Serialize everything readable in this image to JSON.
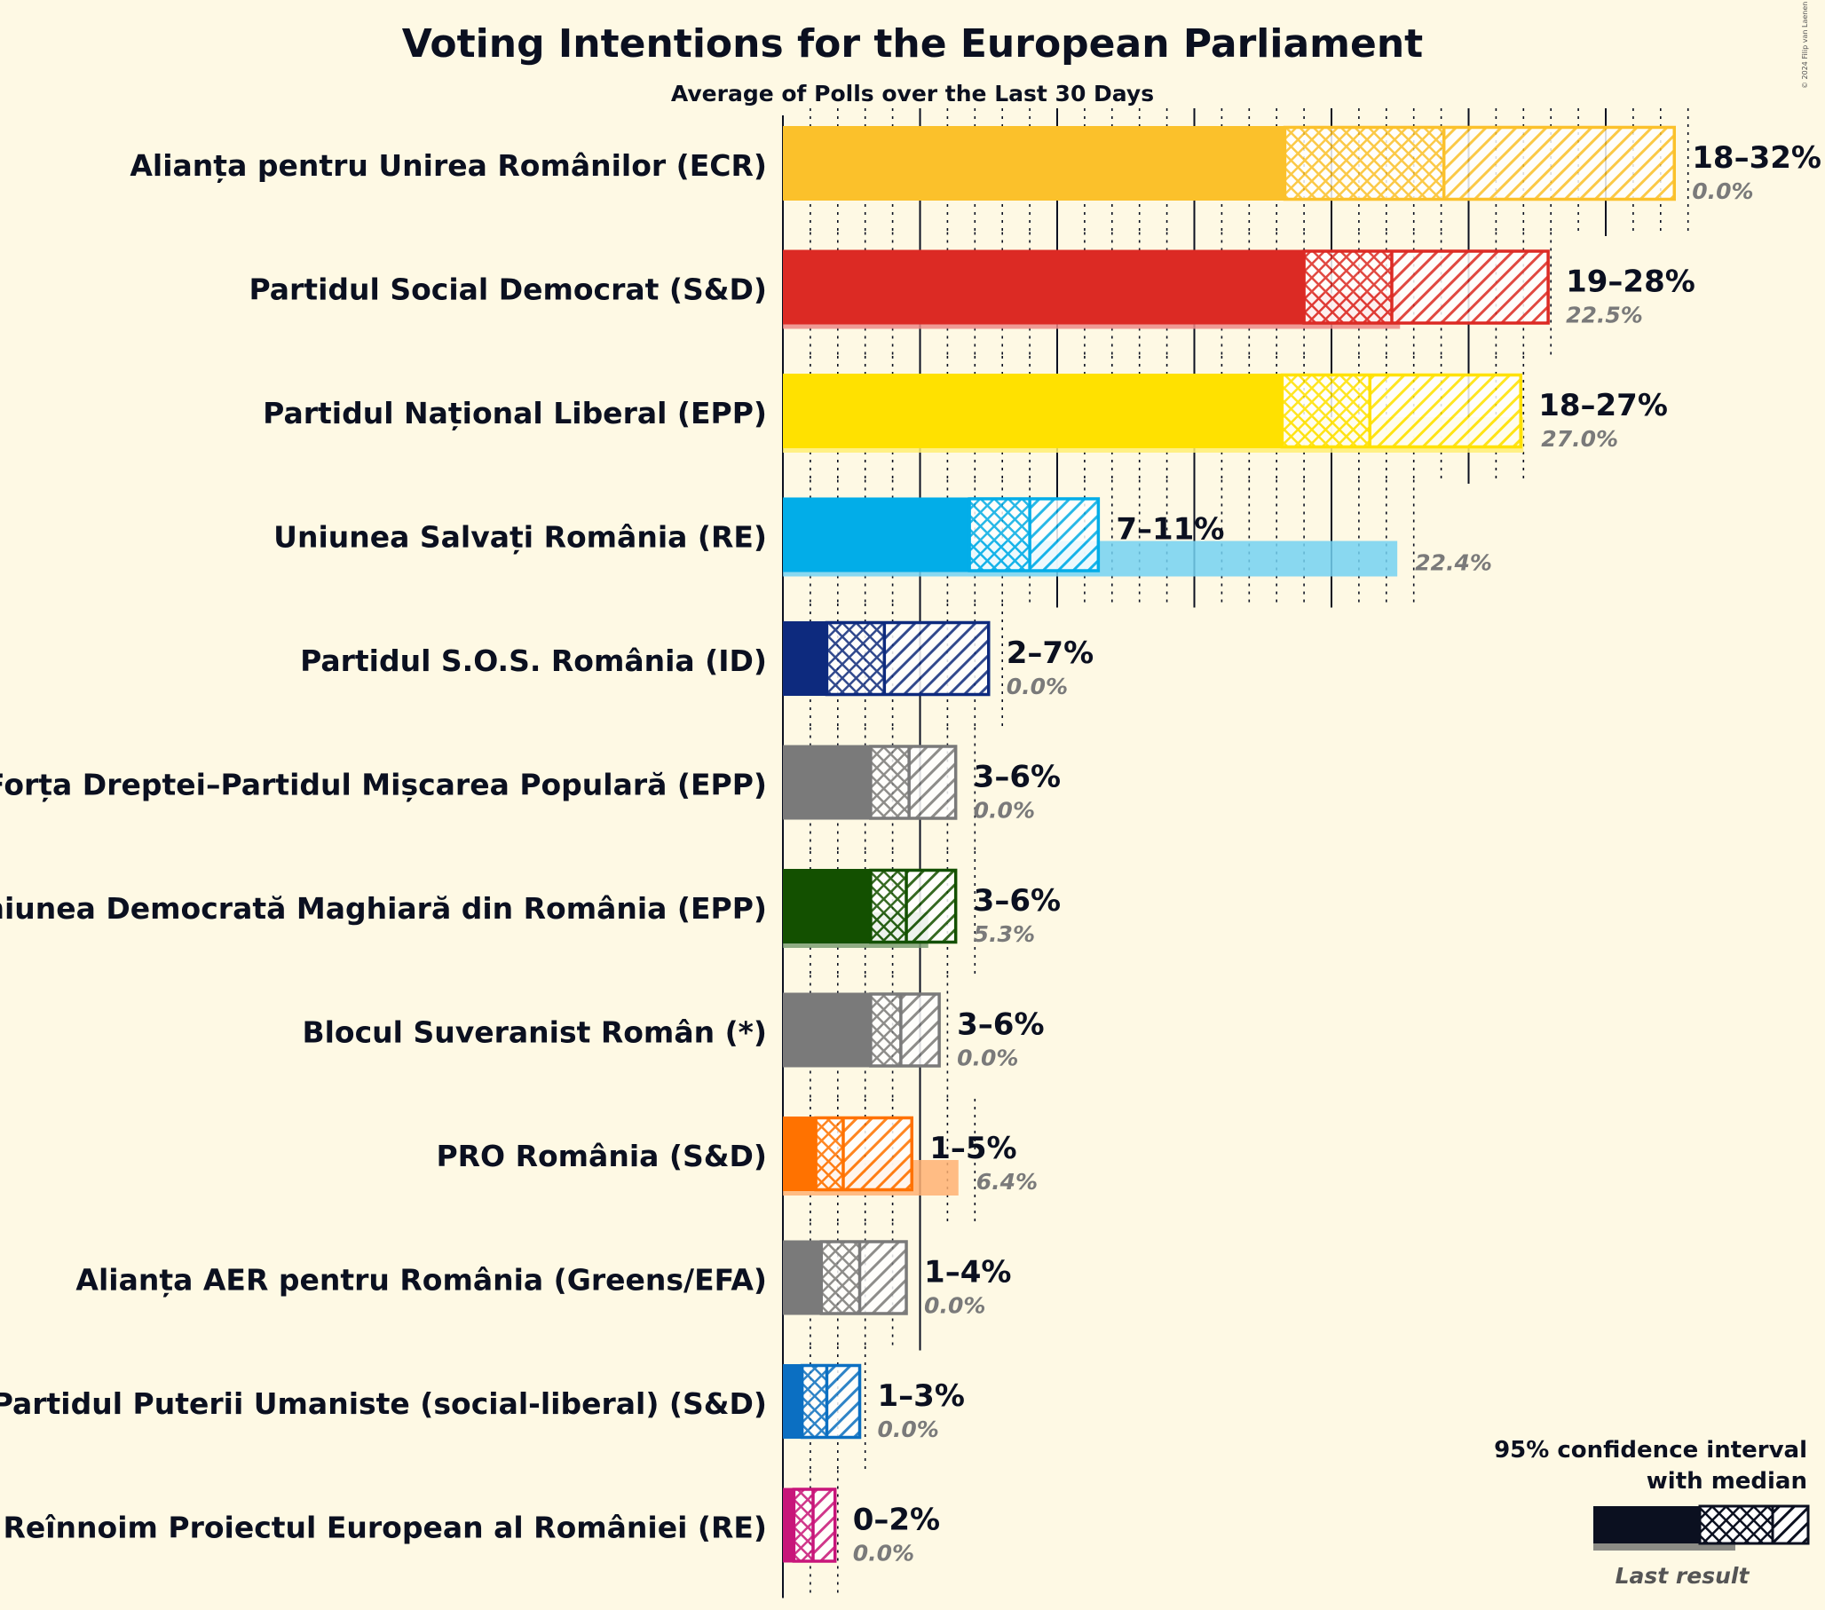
{
  "title": "Voting Intentions for the European Parliament",
  "subtitle": "Average of Polls over the Last 30 Days",
  "copyright": "© 2024 Filip van Laenen",
  "legend": {
    "line1": "95% confidence interval",
    "line2": "with median",
    "last_result": "Last result"
  },
  "chart_data": {
    "type": "bar",
    "orientation": "horizontal",
    "x_unit": "%",
    "xlim": [
      0,
      33
    ],
    "series": [
      {
        "party": "Alianța pentru Unirea Românilor (ECR)",
        "color": "#fbc12b",
        "ci_low": 18.3,
        "median": 24.1,
        "ci_high": 32.5,
        "range_label": "18–32%",
        "last_result": 0.0,
        "last_label": "0.0%"
      },
      {
        "party": "Partidul Social Democrat (S&D)",
        "color": "#dc2a24",
        "ci_low": 19.0,
        "median": 22.2,
        "ci_high": 27.9,
        "range_label": "19–28%",
        "last_result": 22.5,
        "last_label": "22.5%"
      },
      {
        "party": "Partidul Național Liberal (EPP)",
        "color": "#ffe100",
        "ci_low": 18.2,
        "median": 21.4,
        "ci_high": 26.9,
        "range_label": "18–27%",
        "last_result": 27.0,
        "last_label": "27.0%"
      },
      {
        "party": "Uniunea Salvați România (RE)",
        "color": "#02ade8",
        "ci_low": 6.8,
        "median": 9.0,
        "ci_high": 11.5,
        "range_label": "7–11%",
        "last_result": 22.4,
        "last_label": "22.4%"
      },
      {
        "party": "Partidul S.O.S. România (ID)",
        "color": "#0d2a7e",
        "ci_low": 1.6,
        "median": 3.7,
        "ci_high": 7.5,
        "range_label": "2–7%",
        "last_result": 0.0,
        "last_label": "0.0%"
      },
      {
        "party": "Forța Dreptei–Partidul Mișcarea Populară (EPP)",
        "color": "#7a7a7a",
        "ci_low": 3.2,
        "median": 4.6,
        "ci_high": 6.3,
        "range_label": "3–6%",
        "last_result": 0.0,
        "last_label": "0.0%"
      },
      {
        "party": "Uniunea Democrată Maghiară din România (EPP)",
        "color": "#135000",
        "ci_low": 3.2,
        "median": 4.5,
        "ci_high": 6.3,
        "range_label": "3–6%",
        "last_result": 5.3,
        "last_label": "5.3%"
      },
      {
        "party": "Blocul Suveranist Român (*)",
        "color": "#7a7a7a",
        "ci_low": 3.2,
        "median": 4.3,
        "ci_high": 5.7,
        "range_label": "3–6%",
        "last_result": 0.0,
        "last_label": "0.0%"
      },
      {
        "party": "PRO România (S&D)",
        "color": "#ff7200",
        "ci_low": 1.2,
        "median": 2.2,
        "ci_high": 4.7,
        "range_label": "1–5%",
        "last_result": 6.4,
        "last_label": "6.4%"
      },
      {
        "party": "Alianța AER pentru România (Greens/EFA)",
        "color": "#7a7a7a",
        "ci_low": 1.4,
        "median": 2.8,
        "ci_high": 4.5,
        "range_label": "1–4%",
        "last_result": 0.0,
        "last_label": "0.0%"
      },
      {
        "party": "Partidul Puterii Umaniste (social-liberal) (S&D)",
        "color": "#0b6fc2",
        "ci_low": 0.7,
        "median": 1.6,
        "ci_high": 2.8,
        "range_label": "1–3%",
        "last_result": 0.0,
        "last_label": "0.0%"
      },
      {
        "party": "Reînnoim Proiectul European al României (RE)",
        "color": "#c8157a",
        "ci_low": 0.4,
        "median": 1.1,
        "ci_high": 1.9,
        "range_label": "0–2%",
        "last_result": 0.0,
        "last_label": "0.0%"
      }
    ]
  }
}
